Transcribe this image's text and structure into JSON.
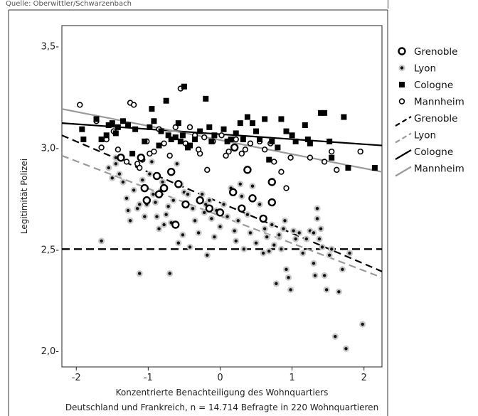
{
  "source": "Quelle: Oberwittler/Schwarzenbach",
  "chart_data": {
    "type": "scatter",
    "title": "",
    "xlabel": "Konzentrierte Benachteiligung des Wohnquartiers",
    "subtitle": "Deutschland und Frankreich, n = 14.714 Befragte in 220 Wohnquartieren",
    "ylabel": "Legitimität Polizei",
    "xlim": [
      -2.2,
      2.25
    ],
    "ylim": [
      1.92,
      3.6
    ],
    "xticks": [
      -2,
      -1,
      0,
      1,
      2
    ],
    "xtick_labels": [
      "-2",
      "-1",
      "0",
      "1",
      "2"
    ],
    "yticks": [
      2.0,
      2.5,
      3.0,
      3.5
    ],
    "ytick_labels": [
      "2,0-",
      "2,5-",
      "3,0-",
      "3,5-"
    ],
    "grid": false,
    "legend_position": "right",
    "legend": [
      {
        "label": "Grenoble",
        "kind": "marker",
        "marker": "ring-bold"
      },
      {
        "label": "Lyon",
        "kind": "marker",
        "marker": "dot-gray"
      },
      {
        "label": "Cologne",
        "kind": "marker",
        "marker": "square"
      },
      {
        "label": "Mannheim",
        "kind": "marker",
        "marker": "ring-thin"
      },
      {
        "label": "Grenoble",
        "kind": "line",
        "style": "dashed",
        "color": "#000000"
      },
      {
        "label": "Lyon",
        "kind": "line",
        "style": "dashed",
        "color": "#9a9a9a"
      },
      {
        "label": "Cologne",
        "kind": "line",
        "style": "solid",
        "color": "#000000"
      },
      {
        "label": "Mannheim",
        "kind": "line",
        "style": "solid",
        "color": "#9a9a9a"
      }
    ],
    "colors": {
      "black": "#000000",
      "gray": "#9a9a9a",
      "light_gray": "#c8c8c8"
    },
    "reference_line": {
      "y": 2.5,
      "style": "dashed",
      "color": "#000000"
    },
    "fit_lines": [
      {
        "name": "Grenoble",
        "style": "dashed",
        "color": "#000000",
        "x": [
          -2.2,
          2.25
        ],
        "y": [
          3.06,
          2.39
        ]
      },
      {
        "name": "Lyon",
        "style": "dashed",
        "color": "#9a9a9a",
        "x": [
          -2.2,
          2.25
        ],
        "y": [
          2.96,
          2.36
        ]
      },
      {
        "name": "Cologne",
        "style": "solid",
        "color": "#000000",
        "x": [
          -2.2,
          2.25
        ],
        "y": [
          3.12,
          3.01
        ]
      },
      {
        "name": "Mannheim",
        "style": "solid",
        "color": "#9a9a9a",
        "x": [
          -2.2,
          2.25
        ],
        "y": [
          3.19,
          2.88
        ]
      }
    ],
    "series": [
      {
        "name": "Grenoble",
        "marker": "ring-bold",
        "points": [
          [
            -1.38,
            2.95
          ],
          [
            -1.1,
            2.95
          ],
          [
            -1.05,
            2.8
          ],
          [
            -0.88,
            2.86
          ],
          [
            -0.78,
            2.8
          ],
          [
            -0.68,
            2.88
          ],
          [
            -0.58,
            2.82
          ],
          [
            -0.48,
            2.72
          ],
          [
            -0.62,
            2.62
          ],
          [
            -0.28,
            2.74
          ],
          [
            -0.15,
            2.7
          ],
          [
            0.0,
            2.68
          ],
          [
            0.2,
            3.0
          ],
          [
            0.3,
            2.7
          ],
          [
            0.45,
            2.75
          ],
          [
            0.6,
            2.65
          ],
          [
            0.72,
            2.83
          ],
          [
            0.72,
            2.73
          ],
          [
            -1.02,
            2.74
          ],
          [
            -0.85,
            2.77
          ],
          [
            0.18,
            2.78
          ],
          [
            0.38,
            2.89
          ]
        ]
      },
      {
        "name": "Lyon",
        "marker": "dot-gray",
        "points": [
          [
            -1.65,
            2.54
          ],
          [
            -1.55,
            2.9
          ],
          [
            -1.5,
            2.85
          ],
          [
            -1.45,
            2.95
          ],
          [
            -1.4,
            2.87
          ],
          [
            -1.35,
            2.83
          ],
          [
            -1.3,
            2.75
          ],
          [
            -1.28,
            2.69
          ],
          [
            -1.25,
            2.64
          ],
          [
            -1.2,
            2.79
          ],
          [
            -1.15,
            2.7
          ],
          [
            -1.12,
            2.72
          ],
          [
            -1.08,
            2.84
          ],
          [
            -1.05,
            2.66
          ],
          [
            -1.02,
            2.72
          ],
          [
            -0.98,
            2.87
          ],
          [
            -0.95,
            2.93
          ],
          [
            -0.93,
            2.77
          ],
          [
            -0.9,
            2.73
          ],
          [
            -0.88,
            2.66
          ],
          [
            -0.85,
            2.6
          ],
          [
            -0.82,
            2.79
          ],
          [
            -0.8,
            2.83
          ],
          [
            -0.78,
            2.62
          ],
          [
            -0.75,
            2.67
          ],
          [
            -0.72,
            2.71
          ],
          [
            -0.68,
            2.63
          ],
          [
            -0.65,
            2.74
          ],
          [
            -0.6,
            2.92
          ],
          [
            -0.58,
            2.53
          ],
          [
            -0.55,
            2.82
          ],
          [
            -0.52,
            2.57
          ],
          [
            -0.5,
            2.78
          ],
          [
            -0.45,
            2.77
          ],
          [
            -0.42,
            2.51
          ],
          [
            -0.38,
            2.7
          ],
          [
            -0.35,
            2.64
          ],
          [
            -0.3,
            2.58
          ],
          [
            -0.25,
            2.77
          ],
          [
            -0.22,
            2.68
          ],
          [
            -0.2,
            2.72
          ],
          [
            -0.18,
            2.47
          ],
          [
            -0.15,
            2.74
          ],
          [
            -0.12,
            2.65
          ],
          [
            -0.08,
            2.56
          ],
          [
            -0.05,
            2.69
          ],
          [
            0.0,
            2.61
          ],
          [
            0.05,
            2.72
          ],
          [
            0.1,
            2.66
          ],
          [
            0.15,
            2.8
          ],
          [
            0.2,
            2.59
          ],
          [
            0.22,
            2.54
          ],
          [
            0.25,
            2.64
          ],
          [
            0.3,
            2.76
          ],
          [
            0.33,
            2.5
          ],
          [
            0.38,
            2.67
          ],
          [
            0.42,
            2.58
          ],
          [
            0.45,
            2.81
          ],
          [
            0.5,
            2.53
          ],
          [
            0.55,
            2.72
          ],
          [
            0.6,
            2.48
          ],
          [
            0.62,
            2.6
          ],
          [
            0.65,
            2.56
          ],
          [
            0.68,
            2.49
          ],
          [
            0.72,
            2.62
          ],
          [
            0.75,
            2.52
          ],
          [
            0.78,
            2.33
          ],
          [
            0.82,
            2.56
          ],
          [
            0.85,
            2.5
          ],
          [
            0.88,
            2.6
          ],
          [
            0.9,
            2.64
          ],
          [
            0.92,
            2.4
          ],
          [
            0.95,
            2.36
          ],
          [
            0.98,
            2.3
          ],
          [
            1.02,
            2.59
          ],
          [
            1.05,
            2.55
          ],
          [
            1.1,
            2.58
          ],
          [
            1.15,
            2.48
          ],
          [
            1.2,
            2.55
          ],
          [
            1.25,
            2.59
          ],
          [
            1.3,
            2.43
          ],
          [
            1.32,
            2.37
          ],
          [
            1.35,
            2.7
          ],
          [
            1.38,
            2.55
          ],
          [
            1.42,
            2.51
          ],
          [
            1.45,
            2.37
          ],
          [
            1.48,
            2.3
          ],
          [
            1.52,
            2.47
          ],
          [
            1.55,
            2.5
          ],
          [
            1.6,
            2.07
          ],
          [
            1.65,
            2.29
          ],
          [
            1.7,
            2.4
          ],
          [
            1.75,
            2.01
          ],
          [
            1.8,
            2.48
          ],
          [
            1.98,
            2.13
          ],
          [
            -1.12,
            2.38
          ],
          [
            -0.7,
            2.38
          ],
          [
            1.3,
            2.58
          ],
          [
            0.82,
            2.57
          ],
          [
            1.4,
            2.6
          ],
          [
            1.35,
            2.65
          ],
          [
            -1.45,
            2.92
          ],
          [
            0.28,
            2.82
          ]
        ]
      },
      {
        "name": "Cologne",
        "marker": "square",
        "points": [
          [
            -1.92,
            3.09
          ],
          [
            -1.9,
            3.04
          ],
          [
            -1.72,
            3.14
          ],
          [
            -1.65,
            3.04
          ],
          [
            -1.58,
            3.06
          ],
          [
            -1.55,
            3.11
          ],
          [
            -1.5,
            3.12
          ],
          [
            -1.45,
            3.07
          ],
          [
            -1.42,
            3.1
          ],
          [
            -1.35,
            3.13
          ],
          [
            -1.28,
            3.11
          ],
          [
            -1.22,
            2.97
          ],
          [
            -1.18,
            3.09
          ],
          [
            -1.05,
            3.03
          ],
          [
            -0.98,
            3.1
          ],
          [
            -0.95,
            3.19
          ],
          [
            -0.92,
            3.13
          ],
          [
            -0.85,
            3.01
          ],
          [
            -0.82,
            3.08
          ],
          [
            -0.75,
            3.23
          ],
          [
            -0.72,
            3.06
          ],
          [
            -0.68,
            3.04
          ],
          [
            -0.62,
            3.05
          ],
          [
            -0.58,
            3.12
          ],
          [
            -0.55,
            3.03
          ],
          [
            -0.52,
            3.06
          ],
          [
            -0.5,
            3.3
          ],
          [
            -0.45,
            3.0
          ],
          [
            -0.42,
            3.01
          ],
          [
            -0.35,
            3.04
          ],
          [
            -0.28,
            3.08
          ],
          [
            -0.2,
            3.24
          ],
          [
            -0.15,
            3.1
          ],
          [
            -0.12,
            3.03
          ],
          [
            -0.08,
            3.06
          ],
          [
            0.05,
            3.09
          ],
          [
            0.1,
            3.03
          ],
          [
            0.15,
            3.04
          ],
          [
            0.22,
            3.07
          ],
          [
            0.28,
            3.12
          ],
          [
            0.32,
            3.04
          ],
          [
            0.38,
            3.15
          ],
          [
            0.45,
            3.12
          ],
          [
            0.5,
            3.08
          ],
          [
            0.55,
            3.04
          ],
          [
            0.62,
            3.14
          ],
          [
            0.68,
            2.94
          ],
          [
            0.72,
            3.03
          ],
          [
            0.8,
            3.0
          ],
          [
            0.85,
            3.14
          ],
          [
            0.92,
            3.08
          ],
          [
            1.0,
            3.06
          ],
          [
            1.05,
            3.03
          ],
          [
            1.18,
            3.11
          ],
          [
            1.22,
            3.04
          ],
          [
            1.25,
            3.02
          ],
          [
            1.4,
            3.17
          ],
          [
            1.45,
            3.17
          ],
          [
            1.52,
            3.03
          ],
          [
            1.55,
            2.95
          ],
          [
            1.72,
            3.15
          ],
          [
            1.78,
            2.9
          ],
          [
            2.15,
            2.9
          ]
        ]
      },
      {
        "name": "Mannheim",
        "marker": "ring-thin",
        "points": [
          [
            -1.95,
            3.21
          ],
          [
            -1.72,
            3.13
          ],
          [
            -1.65,
            3.0
          ],
          [
            -1.58,
            3.04
          ],
          [
            -1.48,
            3.08
          ],
          [
            -1.42,
            2.99
          ],
          [
            -1.3,
            2.93
          ],
          [
            -1.25,
            3.22
          ],
          [
            -1.2,
            3.21
          ],
          [
            -1.15,
            2.92
          ],
          [
            -1.12,
            2.9
          ],
          [
            -1.08,
            2.94
          ],
          [
            -1.02,
            3.03
          ],
          [
            -0.98,
            2.97
          ],
          [
            -0.92,
            2.98
          ],
          [
            -0.85,
            3.09
          ],
          [
            -0.78,
            3.02
          ],
          [
            -0.7,
            2.96
          ],
          [
            -0.62,
            3.1
          ],
          [
            -0.55,
            3.29
          ],
          [
            -0.48,
            3.02
          ],
          [
            -0.42,
            3.1
          ],
          [
            -0.35,
            3.06
          ],
          [
            -0.28,
            2.97
          ],
          [
            -0.22,
            3.05
          ],
          [
            -0.18,
            2.89
          ],
          [
            -0.1,
            3.03
          ],
          [
            0.02,
            3.06
          ],
          [
            0.08,
            2.96
          ],
          [
            0.12,
            2.98
          ],
          [
            0.22,
            3.04
          ],
          [
            0.3,
            2.97
          ],
          [
            0.35,
            2.99
          ],
          [
            0.42,
            3.02
          ],
          [
            0.55,
            3.03
          ],
          [
            0.62,
            2.99
          ],
          [
            0.7,
            3.02
          ],
          [
            0.75,
            2.93
          ],
          [
            0.85,
            2.88
          ],
          [
            0.92,
            2.8
          ],
          [
            0.98,
            2.95
          ],
          [
            1.25,
            2.95
          ],
          [
            1.45,
            2.93
          ],
          [
            1.55,
            2.98
          ],
          [
            1.62,
            2.89
          ],
          [
            1.95,
            2.98
          ],
          [
            -0.3,
            2.99
          ]
        ]
      }
    ]
  }
}
